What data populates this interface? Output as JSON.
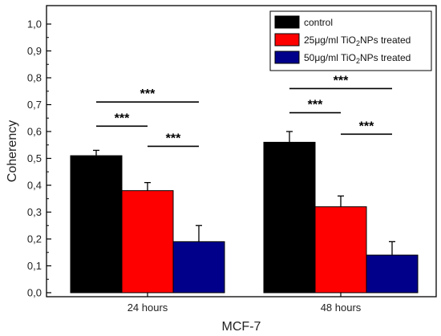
{
  "chart_data": {
    "type": "bar",
    "title": "",
    "xlabel": "MCF-7",
    "ylabel": "Coherency",
    "ylim": [
      0,
      1.05
    ],
    "yticks": [
      "0,0",
      "0,1",
      "0,2",
      "0,3",
      "0,4",
      "0,5",
      "0,6",
      "0,7",
      "0,8",
      "0,9",
      "1,0"
    ],
    "ytick_values": [
      0,
      0.1,
      0.2,
      0.3,
      0.4,
      0.5,
      0.6,
      0.7,
      0.8,
      0.9,
      1.0
    ],
    "categories": [
      "24 hours",
      "48 hours"
    ],
    "series": [
      {
        "name": "control",
        "color": "#000000",
        "values": [
          0.51,
          0.56
        ],
        "errors": [
          0.02,
          0.04
        ]
      },
      {
        "name": "25μg/ml TiO2NPs treated",
        "color": "#ff0000",
        "values": [
          0.38,
          0.32
        ],
        "errors": [
          0.03,
          0.04
        ]
      },
      {
        "name": "50μg/ml TiO2NPs treated",
        "color": "#00008b",
        "values": [
          0.19,
          0.14
        ],
        "errors": [
          0.06,
          0.05
        ]
      }
    ],
    "legend": {
      "position": "top-right",
      "entries": [
        {
          "prefix": "control",
          "sub": "",
          "suffix": ""
        },
        {
          "prefix": "25μg/ml TiO",
          "sub": "2",
          "suffix": "NPs treated"
        },
        {
          "prefix": "50μg/ml TiO",
          "sub": "2",
          "suffix": "NPs treated"
        }
      ]
    },
    "significance": [
      {
        "category": 0,
        "from": 0,
        "to": 1,
        "level": 0.62,
        "label": "***"
      },
      {
        "category": 0,
        "from": 0,
        "to": 2,
        "level": 0.71,
        "label": "***"
      },
      {
        "category": 0,
        "from": 1,
        "to": 2,
        "level": 0.545,
        "label": "***"
      },
      {
        "category": 1,
        "from": 0,
        "to": 1,
        "level": 0.67,
        "label": "***"
      },
      {
        "category": 1,
        "from": 0,
        "to": 2,
        "level": 0.76,
        "label": "***"
      },
      {
        "category": 1,
        "from": 1,
        "to": 2,
        "level": 0.59,
        "label": "***"
      }
    ],
    "grid": false
  }
}
